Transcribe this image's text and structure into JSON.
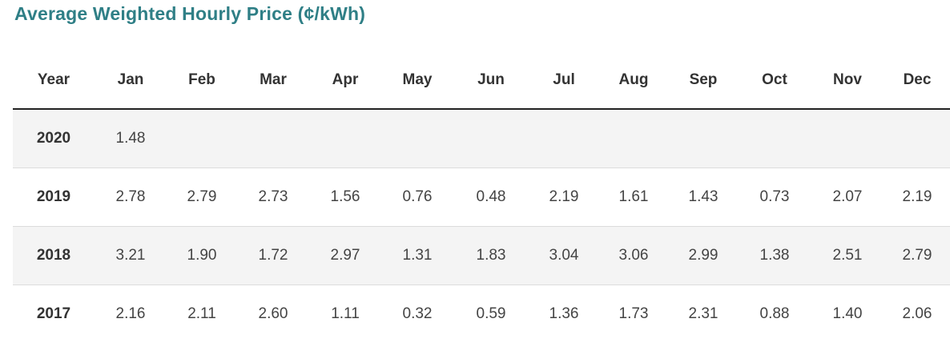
{
  "title": "Average Weighted Hourly Price (¢/kWh)",
  "table": {
    "columns": [
      "Year",
      "Jan",
      "Feb",
      "Mar",
      "Apr",
      "May",
      "Jun",
      "Jul",
      "Aug",
      "Sep",
      "Oct",
      "Nov",
      "Dec"
    ],
    "rows": [
      {
        "year": "2020",
        "values": [
          "1.48",
          "",
          "",
          "",
          "",
          "",
          "",
          "",
          "",
          "",
          "",
          ""
        ]
      },
      {
        "year": "2019",
        "values": [
          "2.78",
          "2.79",
          "2.73",
          "1.56",
          "0.76",
          "0.48",
          "2.19",
          "1.61",
          "1.43",
          "0.73",
          "2.07",
          "2.19"
        ]
      },
      {
        "year": "2018",
        "values": [
          "3.21",
          "1.90",
          "1.72",
          "2.97",
          "1.31",
          "1.83",
          "3.04",
          "3.06",
          "2.99",
          "1.38",
          "2.51",
          "2.79"
        ]
      },
      {
        "year": "2017",
        "values": [
          "2.16",
          "2.11",
          "2.60",
          "1.11",
          "0.32",
          "0.59",
          "1.36",
          "1.73",
          "2.31",
          "0.88",
          "1.40",
          "2.06"
        ]
      }
    ]
  }
}
